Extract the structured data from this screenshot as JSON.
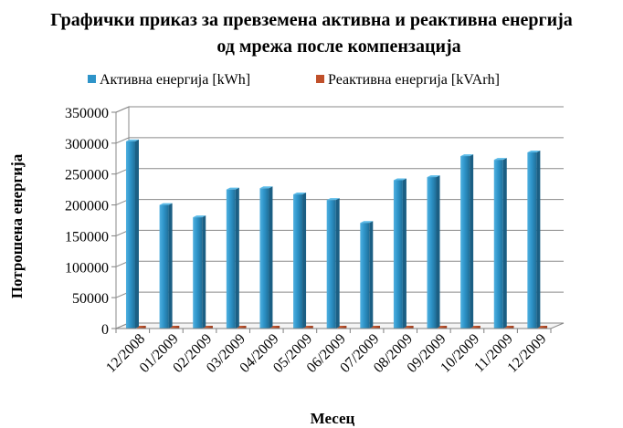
{
  "chart_data": {
    "type": "bar",
    "title_line1": "Графички приказ за превземена активна и реактивна енергија",
    "title_line2": "од мрежа после компензација",
    "xlabel": "Месец",
    "ylabel": "Потрошена енергија",
    "legend_position": "top",
    "grid": true,
    "ylim": [
      0,
      350000
    ],
    "yticks": [
      "0",
      "50000",
      "100000",
      "150000",
      "200000",
      "250000",
      "300000",
      "350000"
    ],
    "ytick_values": [
      0,
      50000,
      100000,
      150000,
      200000,
      250000,
      300000,
      350000
    ],
    "categories": [
      "12/2008",
      "01/2009",
      "02/2009",
      "03/2009",
      "04/2009",
      "05/2009",
      "06/2009",
      "07/2009",
      "08/2009",
      "09/2009",
      "10/2009",
      "11/2009",
      "12/2009"
    ],
    "series": [
      {
        "name": "Активна енергија [kWh]",
        "color": "#2e94c9",
        "values": [
          303000,
          200000,
          180000,
          225000,
          227000,
          217000,
          208000,
          171000,
          240000,
          245000,
          279000,
          273000,
          285000
        ]
      },
      {
        "name": "Реактивна енергија [kVArh]",
        "color": "#c0502a",
        "values": [
          500,
          500,
          500,
          500,
          500,
          500,
          500,
          500,
          500,
          500,
          500,
          500,
          500
        ]
      }
    ]
  }
}
